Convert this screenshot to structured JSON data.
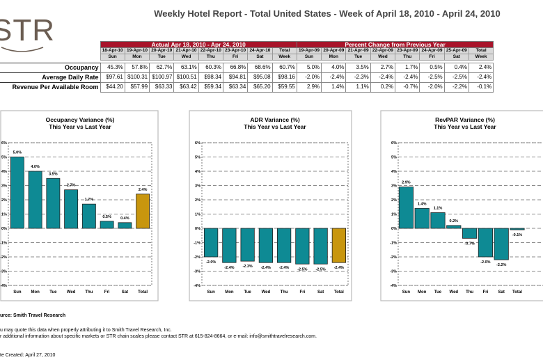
{
  "title": "Weekly Hotel Report - Total United States - Week of April 18, 2010 - April 24, 2010",
  "logo_text": "STR",
  "table": {
    "actual_header": "Actual Apr 18, 2010 - Apr 24, 2010",
    "pct_header": "Percent Change from Previous Year",
    "actual_dates": [
      "18-Apr-10",
      "19-Apr-10",
      "20-Apr-10",
      "21-Apr-10",
      "22-Apr-10",
      "23-Apr-10",
      "24-Apr-10",
      "Total"
    ],
    "actual_days": [
      "Sun",
      "Mon",
      "Tue",
      "Wed",
      "Thu",
      "Fri",
      "Sat",
      "Week"
    ],
    "pct_dates": [
      "19-Apr-09",
      "20-Apr-09",
      "21-Apr-09",
      "22-Apr-09",
      "23-Apr-09",
      "24-Apr-09",
      "25-Apr-09",
      "Total"
    ],
    "pct_days": [
      "Sun",
      "Mon",
      "Tue",
      "Wed",
      "Thu",
      "Fri",
      "Sat",
      "Week"
    ],
    "rows": [
      {
        "label": "Occupancy",
        "actual": [
          "45.3%",
          "57.8%",
          "62.7%",
          "63.1%",
          "60.3%",
          "66.8%",
          "68.6%",
          "60.7%"
        ],
        "pct": [
          "5.0%",
          "4.0%",
          "3.5%",
          "2.7%",
          "1.7%",
          "0.5%",
          "0.4%",
          "2.4%"
        ]
      },
      {
        "label": "Average Daily Rate",
        "actual": [
          "$97.61",
          "$100.31",
          "$100.97",
          "$100.51",
          "$98.34",
          "$94.81",
          "$95.08",
          "$98.16"
        ],
        "pct": [
          "-2.0%",
          "-2.4%",
          "-2.3%",
          "-2.4%",
          "-2.4%",
          "-2.5%",
          "-2.5%",
          "-2.4%"
        ]
      },
      {
        "label": "Revenue Per Available Room",
        "actual": [
          "$44.20",
          "$57.99",
          "$63.33",
          "$63.42",
          "$59.34",
          "$63.34",
          "$65.20",
          "$59.55"
        ],
        "pct": [
          "2.9%",
          "1.4%",
          "1.1%",
          "0.2%",
          "-0.7%",
          "-2.0%",
          "-2.2%",
          "-0.1%"
        ]
      }
    ]
  },
  "chart_data": [
    {
      "type": "bar",
      "title": "Occupancy Variance (%)",
      "subtitle": "This Year vs Last Year",
      "categories": [
        "Sun",
        "Mon",
        "Tue",
        "Wed",
        "Thu",
        "Fri",
        "Sat",
        "Total"
      ],
      "values": [
        5.0,
        4.0,
        3.5,
        2.7,
        1.7,
        0.5,
        0.4,
        2.4
      ],
      "labels": [
        "5.0%",
        "4.0%",
        "3.5%",
        "2.7%",
        "1.7%",
        "0.5%",
        "0.4%",
        "2.4%"
      ],
      "ylim": [
        -4,
        6
      ],
      "yticks": [
        "-4%",
        "-3%",
        "-2%",
        "-1%",
        "0%",
        "1%",
        "2%",
        "3%",
        "4%",
        "5%",
        "6%"
      ],
      "grid": true,
      "colors": {
        "day": "#0e8a94",
        "total": "#c8960e"
      }
    },
    {
      "type": "bar",
      "title": "ADR Variance (%)",
      "subtitle": "This Year vs Last Year",
      "categories": [
        "Sun",
        "Mon",
        "Tue",
        "Wed",
        "Thu",
        "Fri",
        "Sat",
        "Total"
      ],
      "values": [
        -2.0,
        -2.4,
        -2.3,
        -2.4,
        -2.4,
        -2.5,
        -2.5,
        -2.4
      ],
      "labels": [
        "-2.0%",
        "-2.4%",
        "-2.3%",
        "-2.4%",
        "-2.4%",
        "-2.5%",
        "-2.5%",
        "-2.4%"
      ],
      "ylim": [
        -4,
        6
      ],
      "yticks": [
        "-4%",
        "-3%",
        "-2%",
        "-1%",
        "0%",
        "1%",
        "2%",
        "3%",
        "4%",
        "5%",
        "6%"
      ],
      "grid": true,
      "colors": {
        "day": "#0e8a94",
        "total": "#c8960e"
      }
    },
    {
      "type": "bar",
      "title": "RevPAR Variance (%)",
      "subtitle": "This Year vs Last Year",
      "categories": [
        "Sun",
        "Mon",
        "Tue",
        "Wed",
        "Thu",
        "Fri",
        "Sat",
        "Total"
      ],
      "values": [
        2.9,
        1.4,
        1.1,
        0.2,
        -0.7,
        -2.0,
        -2.2,
        -0.1
      ],
      "labels": [
        "2.9%",
        "1.4%",
        "1.1%",
        "0.2%",
        "-0.7%",
        "-2.0%",
        "-2.2%",
        "-0.1%"
      ],
      "ylim": [
        -4,
        6
      ],
      "yticks": [
        "-4%",
        "-3%",
        "-2%",
        "-1%",
        "0%",
        "1%",
        "2%",
        "3%",
        "4%",
        "5%",
        "6%"
      ],
      "grid": true,
      "colors": {
        "day": "#0e8a94",
        "total": "#0e8a94"
      }
    }
  ],
  "footer": {
    "source": "urce: Smith Travel Research",
    "line1": "u may quote this data when properly attributing it to Smith Travel Research, Inc.",
    "line2": "r additional information about specific markets or STR chain scales please contact STR at 615-824-8664, or e-mail: info@smithtravelresearch.com.",
    "created": "te Created: April 27, 2010"
  }
}
